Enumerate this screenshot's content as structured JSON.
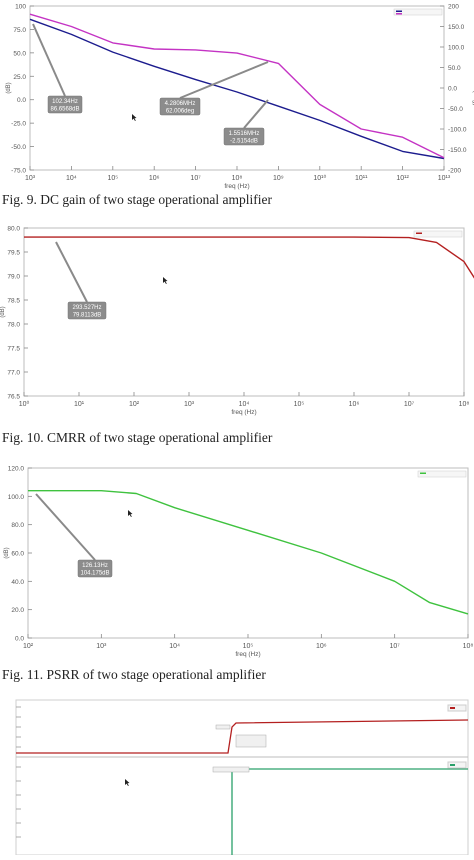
{
  "figures": [
    {
      "caption": "Fig. 9.  DC gain of two stage operational amplifier",
      "chart_data": {
        "type": "line",
        "xlabel": "freq (Hz)",
        "x_log": true,
        "x_ticks": [
          "10³",
          "10⁴",
          "10⁵",
          "10⁶",
          "10⁷",
          "10⁸",
          "10⁹",
          "10¹⁰",
          "10¹¹",
          "10¹²",
          "10¹³"
        ],
        "y_left_label": "(dB)",
        "y_left_ticks": [
          "100",
          "75.0",
          "50.0",
          "25.0",
          "0.0",
          "-25.0",
          "-50.0",
          "-75.0"
        ],
        "y_left_lim": [
          -85,
          100
        ],
        "y_right_label": "Phase (deg)",
        "y_right_ticks": [
          "200",
          "150.0",
          "100.0",
          "50.0",
          "0.0",
          "-50.0",
          "-100.0",
          "-150.0",
          "-200"
        ],
        "y_right_lim": [
          -200,
          200
        ],
        "series": [
          {
            "color": "#1c1c8e",
            "axis": "left",
            "x": [
              1000,
              10000,
              100000,
              1000000,
              10000000,
              100000000,
              1000000000,
              10000000000,
              100000000000,
              1000000000000,
              10000000000000
            ],
            "y": [
              85,
              68,
              48,
              32,
              17,
              3,
              -13,
              -29,
              -47,
              -64,
              -72
            ]
          },
          {
            "color": "#c433c4",
            "axis": "right",
            "x": [
              1000,
              10000,
              100000,
              1000000,
              10000000,
              100000000,
              1000000000,
              10000000000,
              100000000000,
              1000000000000,
              10000000000000
            ],
            "y": [
              180,
              150,
              110,
              95,
              93,
              85,
              60,
              -40,
              -100,
              -120,
              -170
            ]
          }
        ],
        "annotations": [
          {
            "lines": [
              "102.34Hz",
              "86.6568dB"
            ]
          },
          {
            "lines": [
              "4.2806MHz",
              "62.006deg"
            ]
          },
          {
            "lines": [
              "1.5516MHz",
              "-2.5154dB"
            ]
          }
        ]
      }
    },
    {
      "caption": "Fig. 10. CMRR of two stage operational amplifier",
      "chart_data": {
        "type": "line",
        "xlabel": "freq (Hz)",
        "x_log": true,
        "x_ticks": [
          "10⁰",
          "10¹",
          "10²",
          "10³",
          "10⁴",
          "10⁵",
          "10⁶",
          "10⁷",
          "10⁸"
        ],
        "ylabel": "(dB)",
        "y_ticks": [
          "80.0",
          "79.5",
          "79.0",
          "78.5",
          "78.0",
          "77.5",
          "77.0",
          "76.5"
        ],
        "ylim": [
          76.5,
          80.0
        ],
        "series": [
          {
            "color": "#b42020",
            "x": [
              1,
              10,
              100,
              1000,
              10000,
              100000,
              1000000,
              10000000,
              31622776,
              100000000,
              316227766,
              1000000000
            ],
            "y": [
              79.81,
              79.81,
              79.81,
              79.81,
              79.81,
              79.81,
              79.81,
              79.8,
              79.7,
              79.3,
              78.4,
              77.1
            ]
          }
        ],
        "annotations": [
          {
            "lines": [
              "293.527Hz",
              "79.8113dB"
            ]
          }
        ]
      }
    },
    {
      "caption": "Fig. 11. PSRR of two stage operational amplifier",
      "chart_data": {
        "type": "line",
        "xlabel": "freq (Hz)",
        "x_log": true,
        "x_ticks": [
          "10²",
          "10³",
          "10⁴",
          "10⁵",
          "10⁶",
          "10⁷",
          "10⁸"
        ],
        "ylabel": "(dB)",
        "y_ticks": [
          "120.0",
          "100.0",
          "80.0",
          "60.0",
          "40.0",
          "20.0",
          "0.0"
        ],
        "ylim": [
          0,
          120
        ],
        "series": [
          {
            "color": "#3fc23f",
            "x": [
              100,
              1000,
              3000,
              10000,
              100000,
              1000000,
              10000000,
              30000000,
              100000000
            ],
            "y": [
              104,
              104,
              102,
              92,
              76,
              60,
              40,
              25,
              17
            ]
          }
        ],
        "annotations": [
          {
            "lines": [
              "126.13Hz",
              "104.175dB"
            ]
          }
        ]
      }
    }
  ]
}
